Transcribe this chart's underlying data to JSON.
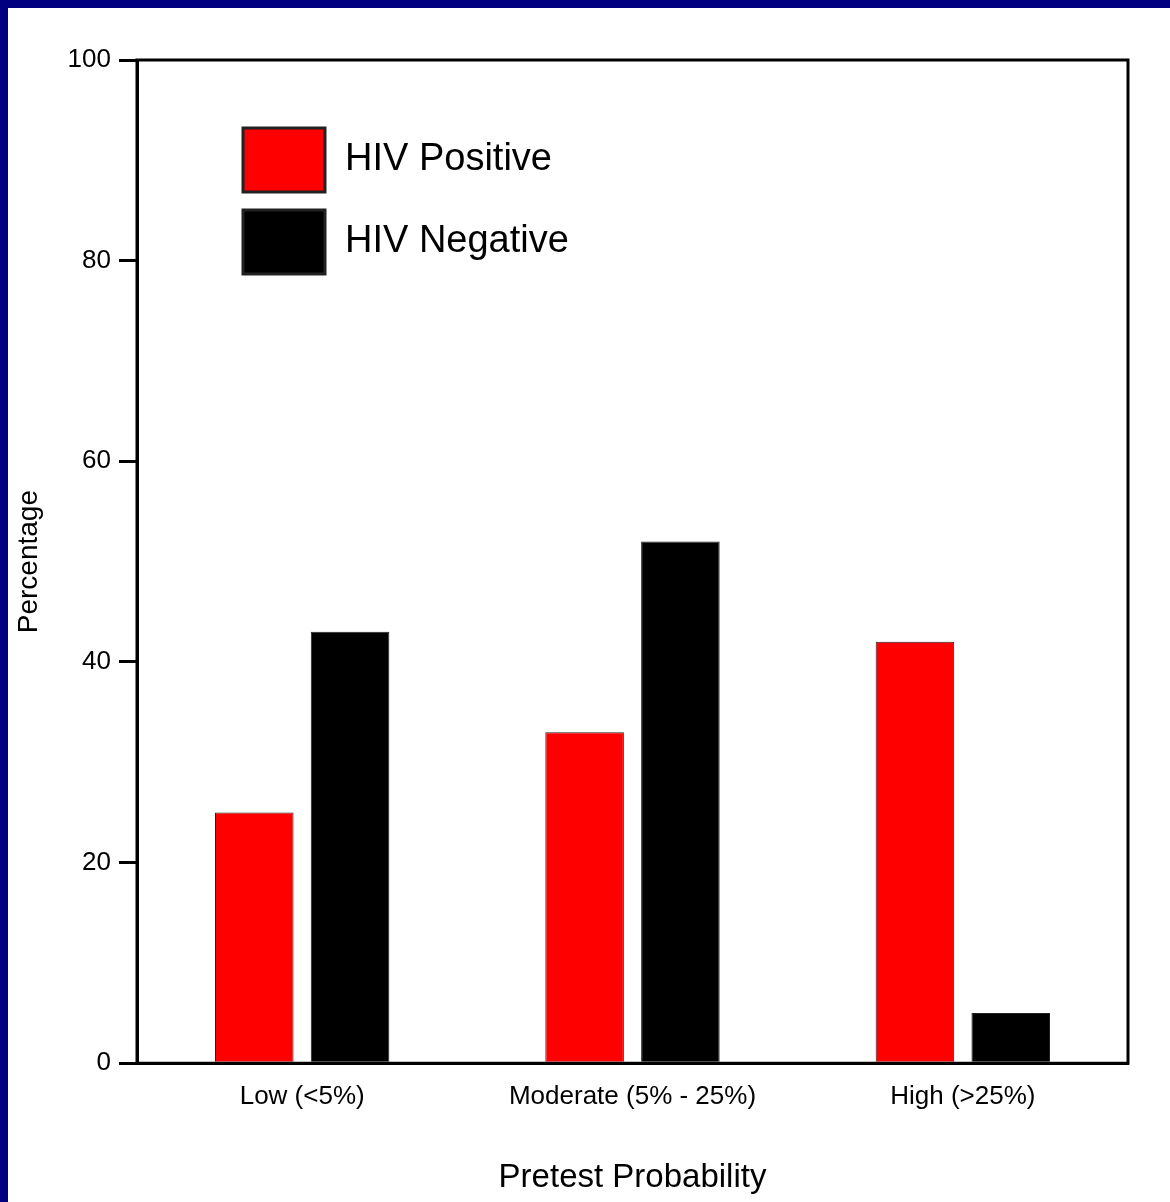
{
  "chart_data": {
    "type": "bar",
    "xlabel": "Pretest Probability",
    "ylabel": "Percentage",
    "categories": [
      "Low (<5%)",
      "Moderate (5% - 25%)",
      "High (>25%)"
    ],
    "series": [
      {
        "name": "HIV Positive",
        "color": "#ff0000",
        "values": [
          25,
          33,
          42
        ]
      },
      {
        "name": "HIV Negative",
        "color": "#000000",
        "values": [
          43,
          52,
          5
        ]
      }
    ],
    "ylim": [
      0,
      100
    ],
    "yticks": [
      0,
      20,
      40,
      60,
      80,
      100
    ],
    "grid": false,
    "legend": "top left"
  }
}
